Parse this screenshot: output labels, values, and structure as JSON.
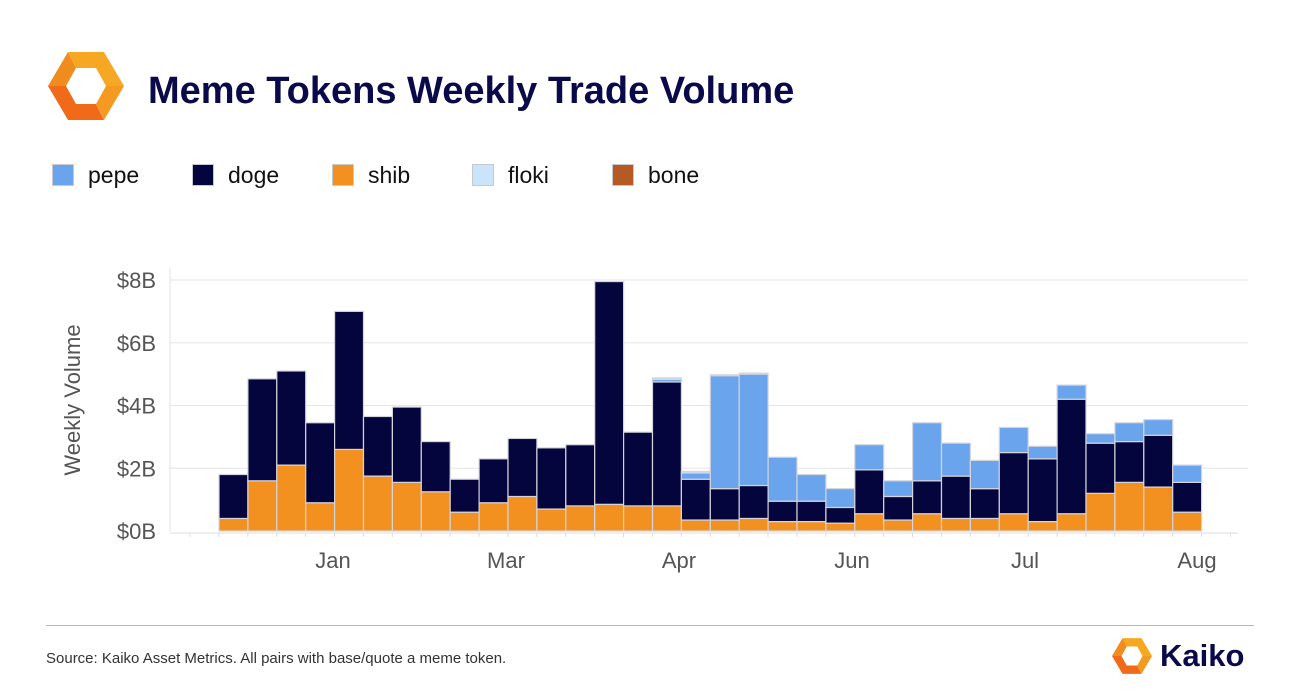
{
  "header": {
    "title": "Meme Tokens Weekly Trade Volume"
  },
  "colors": {
    "pepe": "#6aa4ec",
    "doge": "#05053d",
    "shib": "#f29020",
    "floki": "#c9e4fb",
    "bone": "#b55a22",
    "title": "#0a0a4a"
  },
  "chart_data": {
    "type": "bar",
    "stacked": true,
    "title": "Meme Tokens Weekly Trade Volume",
    "ylabel": "Weekly Volume",
    "xlabel": "",
    "ylim": [
      0,
      8
    ],
    "y_unit": "billion USD",
    "y_ticks": [
      0,
      2,
      4,
      6,
      8
    ],
    "y_tick_labels": [
      "$0B",
      "$2B",
      "$4B",
      "$6B",
      "$8B"
    ],
    "x_tick_labels": [
      "Jan",
      "Mar",
      "Apr",
      "Jun",
      "Jul",
      "Aug"
    ],
    "grid": true,
    "legend_position": "top-left",
    "series": [
      {
        "name": "shib",
        "color": "#f29020",
        "values": [
          0.4,
          1.6,
          2.1,
          0.9,
          2.6,
          1.75,
          1.55,
          1.25,
          0.6,
          0.9,
          1.1,
          0.7,
          0.8,
          0.85,
          0.8,
          0.8,
          0.35,
          0.35,
          0.4,
          0.3,
          0.3,
          0.25,
          0.55,
          0.35,
          0.55,
          0.4,
          0.4,
          0.55,
          0.3,
          0.55,
          1.2,
          1.55,
          1.4,
          0.6
        ]
      },
      {
        "name": "doge",
        "color": "#05053d",
        "values": [
          1.4,
          3.25,
          3.0,
          2.55,
          4.4,
          1.9,
          2.4,
          1.6,
          1.05,
          1.4,
          1.85,
          1.95,
          1.95,
          7.1,
          2.35,
          3.95,
          1.3,
          1.0,
          1.05,
          0.65,
          0.65,
          0.5,
          1.4,
          0.75,
          1.05,
          1.35,
          0.95,
          1.95,
          2.0,
          3.65,
          1.6,
          1.3,
          1.65,
          0.95
        ]
      },
      {
        "name": "pepe",
        "color": "#6aa4ec",
        "values": [
          0,
          0,
          0,
          0,
          0,
          0,
          0,
          0,
          0,
          0,
          0,
          0,
          0,
          0,
          0,
          0.08,
          0.2,
          3.6,
          3.55,
          1.4,
          0.85,
          0.6,
          0.8,
          0.5,
          1.85,
          1.05,
          0.9,
          0.8,
          0.4,
          0.45,
          0.3,
          0.6,
          0.5,
          0.55
        ]
      },
      {
        "name": "floki",
        "color": "#c9e4fb",
        "values": [
          0,
          0,
          0,
          0,
          0,
          0,
          0,
          0,
          0,
          0,
          0,
          0,
          0,
          0,
          0,
          0.05,
          0.05,
          0.03,
          0.03,
          0,
          0,
          0,
          0,
          0,
          0,
          0,
          0,
          0,
          0,
          0,
          0,
          0,
          0,
          0
        ]
      },
      {
        "name": "bone",
        "color": "#b55a22",
        "values": [
          0,
          0,
          0,
          0,
          0,
          0,
          0,
          0,
          0,
          0,
          0,
          0,
          0,
          0,
          0,
          0,
          0,
          0,
          0,
          0,
          0,
          0,
          0,
          0,
          0,
          0,
          0,
          0,
          0,
          0,
          0,
          0,
          0,
          0
        ]
      }
    ]
  },
  "legend": {
    "items": [
      {
        "label": "pepe"
      },
      {
        "label": "doge"
      },
      {
        "label": "shib"
      },
      {
        "label": "floki"
      },
      {
        "label": "bone"
      }
    ]
  },
  "footer": {
    "source": "Source: Kaiko Asset Metrics. All pairs with base/quote a meme token.",
    "brand": "Kaiko"
  }
}
